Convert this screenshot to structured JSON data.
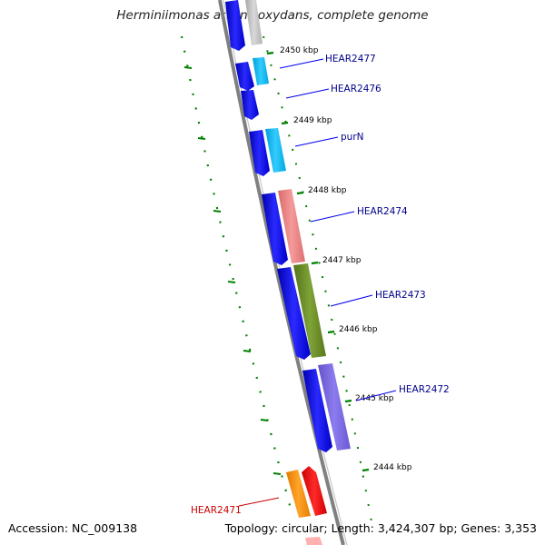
{
  "title": "Herminiimonas arsenicoxydans, complete genome",
  "footer": {
    "accession": "Accession: NC_009138",
    "summary": "Topology: circular; Length: 3,424,307 bp; Genes: 3,353"
  },
  "ticks": [
    {
      "label": "2450 kbp",
      "kbp": 2450
    },
    {
      "label": "2449 kbp",
      "kbp": 2449
    },
    {
      "label": "2448 kbp",
      "kbp": 2448
    },
    {
      "label": "2447 kbp",
      "kbp": 2447
    },
    {
      "label": "2446 kbp",
      "kbp": 2446
    },
    {
      "label": "2445 kbp",
      "kbp": 2445
    },
    {
      "label": "2444 kbp",
      "kbp": 2444
    }
  ],
  "genes": [
    {
      "label": "HEAR2477",
      "label_color": "#00008b",
      "color": "#00bfff"
    },
    {
      "label": "HEAR2476",
      "label_color": "#00008b",
      "color": "#0000ee"
    },
    {
      "label": "purN",
      "label_color": "#00008b",
      "color": "#00bfff"
    },
    {
      "label": "HEAR2474",
      "label_color": "#00008b",
      "color": "#f08080"
    },
    {
      "label": "HEAR2473",
      "label_color": "#00008b",
      "color": "#6b8e23"
    },
    {
      "label": "HEAR2472",
      "label_color": "#00008b",
      "color": "#7b68ee"
    },
    {
      "label": "HEAR2471",
      "label_color": "#cc0000",
      "color": "#ff8c00"
    }
  ],
  "colors": {
    "backbone": "#808080",
    "cds": "#0000ee",
    "tick": "#008000",
    "gc_dots": "#008000"
  }
}
